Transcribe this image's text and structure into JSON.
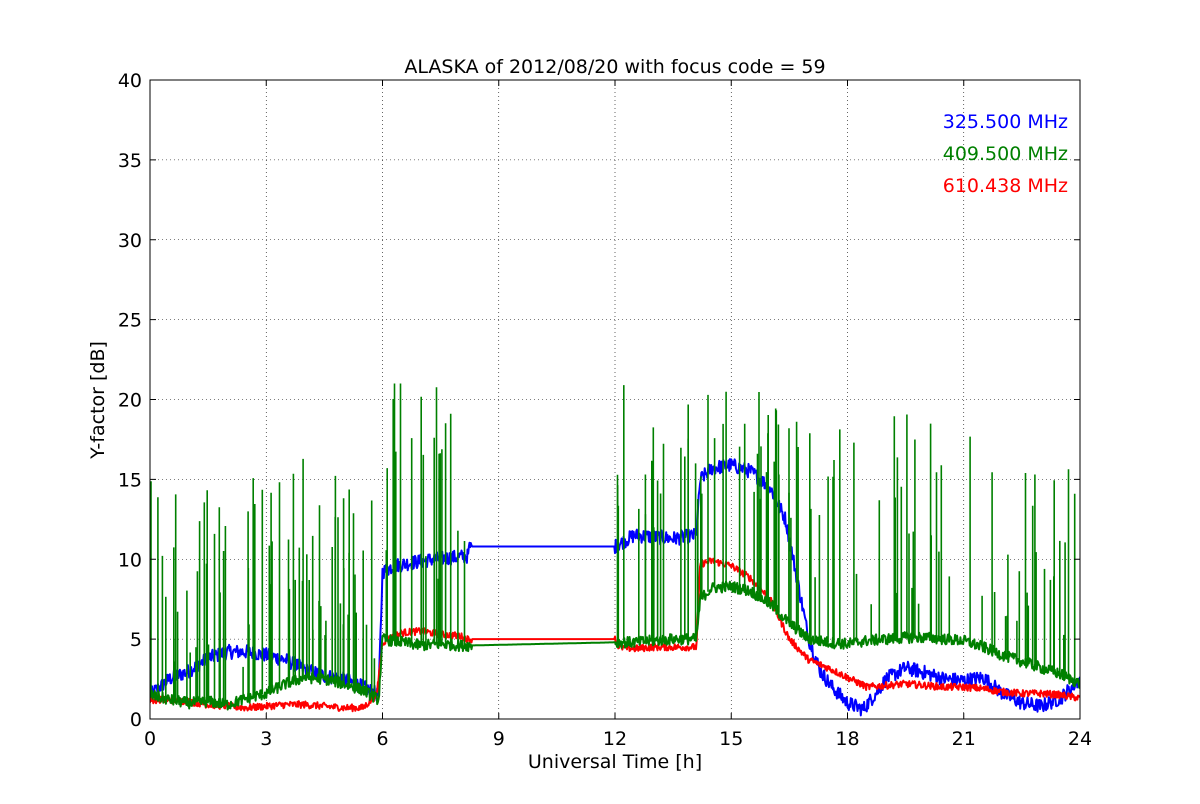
{
  "chart_data": {
    "type": "line",
    "title": "ALASKA of 2012/08/20 with focus code = 59",
    "xlabel": "Universal Time [h]",
    "ylabel": "Y-factor [dB]",
    "xlim": [
      0,
      24
    ],
    "ylim": [
      0,
      40
    ],
    "xticks": [
      "0",
      "3",
      "6",
      "9",
      "12",
      "15",
      "18",
      "21",
      "24"
    ],
    "yticks": [
      "0",
      "5",
      "10",
      "15",
      "20",
      "25",
      "30",
      "35",
      "40"
    ],
    "grid": true,
    "legend_position": "top-right",
    "series": [
      {
        "name": "325.500 MHz",
        "color": "#0000ff",
        "x": [
          0,
          0.5,
          1,
          1.5,
          2,
          2.5,
          3,
          3.5,
          4,
          4.5,
          5,
          5.5,
          5.9,
          6.0,
          6.3,
          6.8,
          7.3,
          7.8,
          8.2,
          8.25,
          12.0,
          12.5,
          13.0,
          13.5,
          14.1,
          14.2,
          14.5,
          15.0,
          15.5,
          16.0,
          16.4,
          16.6,
          16.8,
          17.0,
          17.3,
          17.6,
          18.0,
          18.4,
          18.7,
          19.0,
          19.5,
          20.0,
          20.5,
          21.0,
          21.5,
          22.0,
          22.5,
          23.0,
          23.5,
          24.0
        ],
        "values": [
          1.5,
          2.5,
          3.0,
          3.8,
          4.2,
          4.2,
          4.0,
          3.7,
          3.1,
          2.7,
          2.5,
          2.0,
          1.5,
          9.2,
          9.6,
          9.8,
          10.0,
          10.1,
          10.2,
          10.8,
          10.8,
          11.5,
          11.4,
          11.3,
          11.5,
          15.0,
          15.7,
          15.9,
          15.5,
          14.5,
          12.5,
          10.0,
          7.5,
          5.0,
          3.0,
          2.0,
          1.0,
          0.6,
          1.5,
          2.5,
          3.2,
          2.9,
          2.5,
          2.4,
          2.6,
          1.6,
          1.0,
          0.8,
          1.3,
          2.5
        ],
        "noise": 0.45,
        "spike_count": 0
      },
      {
        "name": "409.500 MHz",
        "color": "#008000",
        "x": [
          0,
          0.5,
          1,
          1.5,
          2,
          2.5,
          3,
          3.5,
          4,
          4.5,
          5,
          5.5,
          5.9,
          6.0,
          6.5,
          7.0,
          7.5,
          8.0,
          8.2,
          12.0,
          12.5,
          13.0,
          13.5,
          14.1,
          14.2,
          14.5,
          15.0,
          15.5,
          16.0,
          16.5,
          17.0,
          17.5,
          18.0,
          18.5,
          19.0,
          19.5,
          20.0,
          20.5,
          21.0,
          21.5,
          22.0,
          22.5,
          23.0,
          23.5,
          24.0
        ],
        "values": [
          1.5,
          1.2,
          1.0,
          1.1,
          0.9,
          1.3,
          1.6,
          2.2,
          2.6,
          2.5,
          2.2,
          1.8,
          1.2,
          5.0,
          4.8,
          4.6,
          4.7,
          4.6,
          4.6,
          4.8,
          4.8,
          4.9,
          5.0,
          5.0,
          7.5,
          8.2,
          8.3,
          8.0,
          7.2,
          6.0,
          5.0,
          4.8,
          4.7,
          4.9,
          5.0,
          5.1,
          5.1,
          5.0,
          4.9,
          4.5,
          4.0,
          3.6,
          3.2,
          2.8,
          2.2
        ],
        "noise": 0.35,
        "spike_count": 220,
        "spike_max": 21
      },
      {
        "name": "610.438 MHz",
        "color": "#ff0000",
        "x": [
          0,
          0.5,
          1,
          1.5,
          2,
          2.5,
          3,
          3.5,
          4,
          4.5,
          5,
          5.5,
          5.85,
          6.0,
          6.5,
          7.0,
          7.5,
          8.0,
          8.2,
          12.0,
          12.1,
          12.5,
          13.0,
          13.5,
          14.1,
          14.2,
          14.5,
          15.0,
          15.5,
          16.0,
          16.5,
          17.0,
          17.5,
          18.0,
          18.5,
          19.0,
          19.5,
          20.0,
          20.5,
          21.0,
          21.5,
          22.0,
          22.5,
          23.0,
          23.5,
          24.0
        ],
        "values": [
          1.2,
          1.2,
          1.1,
          0.9,
          0.8,
          0.7,
          0.8,
          0.9,
          0.9,
          0.8,
          0.7,
          0.7,
          1.5,
          4.8,
          5.4,
          5.5,
          5.3,
          5.2,
          5.0,
          5.0,
          4.5,
          4.4,
          4.5,
          4.5,
          4.5,
          9.7,
          9.9,
          9.6,
          8.8,
          7.5,
          5.0,
          3.7,
          3.2,
          2.6,
          2.0,
          2.1,
          2.2,
          2.1,
          2.0,
          2.0,
          1.9,
          1.7,
          1.6,
          1.6,
          1.5,
          1.3
        ],
        "noise": 0.22,
        "spike_count": 0
      }
    ]
  }
}
